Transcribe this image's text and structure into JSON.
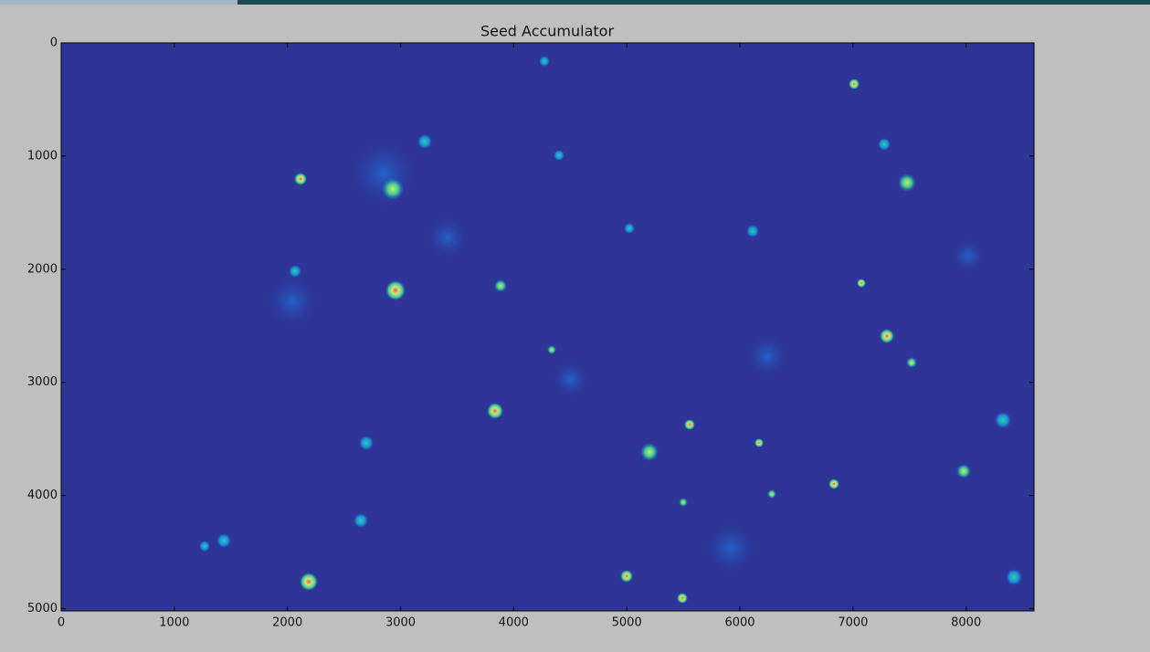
{
  "chart_data": {
    "type": "image",
    "title": "Seed Accumulator",
    "xlim": [
      0,
      8600
    ],
    "xticks": [
      0,
      1000,
      2000,
      3000,
      4000,
      5000,
      6000,
      7000,
      8000
    ],
    "ylim": [
      5020,
      0
    ],
    "yticks": [
      0,
      1000,
      2000,
      3000,
      4000,
      5000
    ],
    "color": "#2e3596"
  }
}
